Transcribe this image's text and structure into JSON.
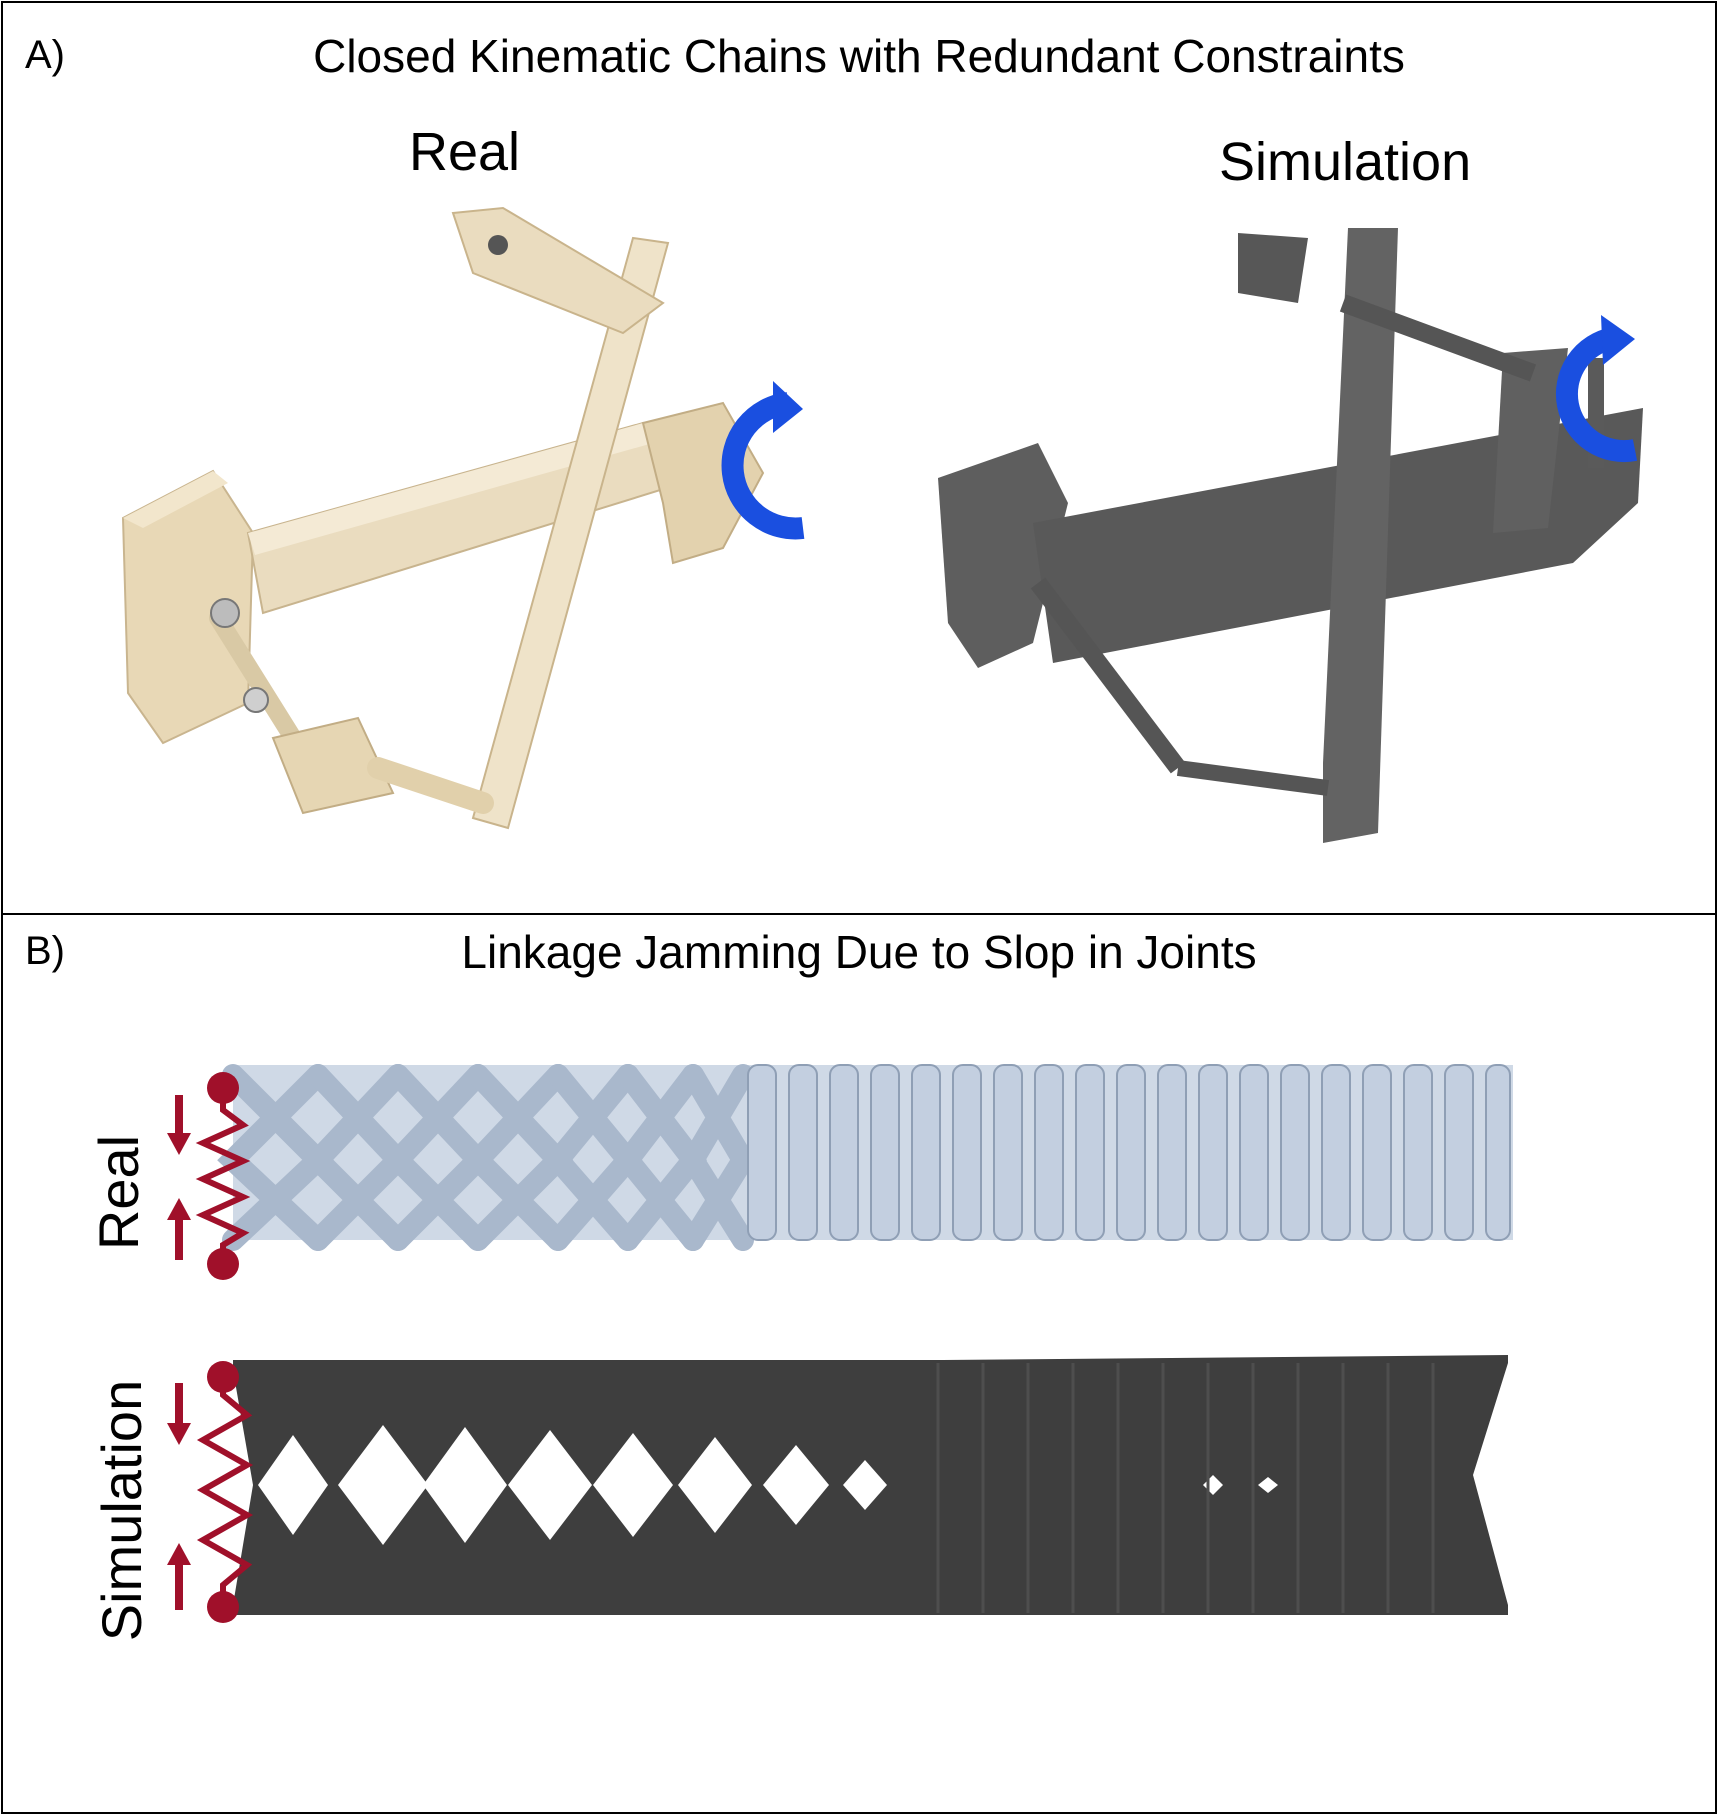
{
  "panel_a": {
    "letter": "A)",
    "title": "Closed Kinematic Chains with Redundant Constraints",
    "left_label": "Real",
    "right_label": "Simulation"
  },
  "panel_b": {
    "letter": "B)",
    "title": "Linkage Jamming Due to Slop in Joints",
    "row1_label": "Real",
    "row2_label": "Simulation"
  },
  "colors": {
    "accent_blue": "#1a4fe0",
    "spring_red": "#a0102a",
    "real_beige": "#eadcbf",
    "sim_gray": "#5e5e5e",
    "linkage_blue_gray": "#b9c8dc"
  }
}
